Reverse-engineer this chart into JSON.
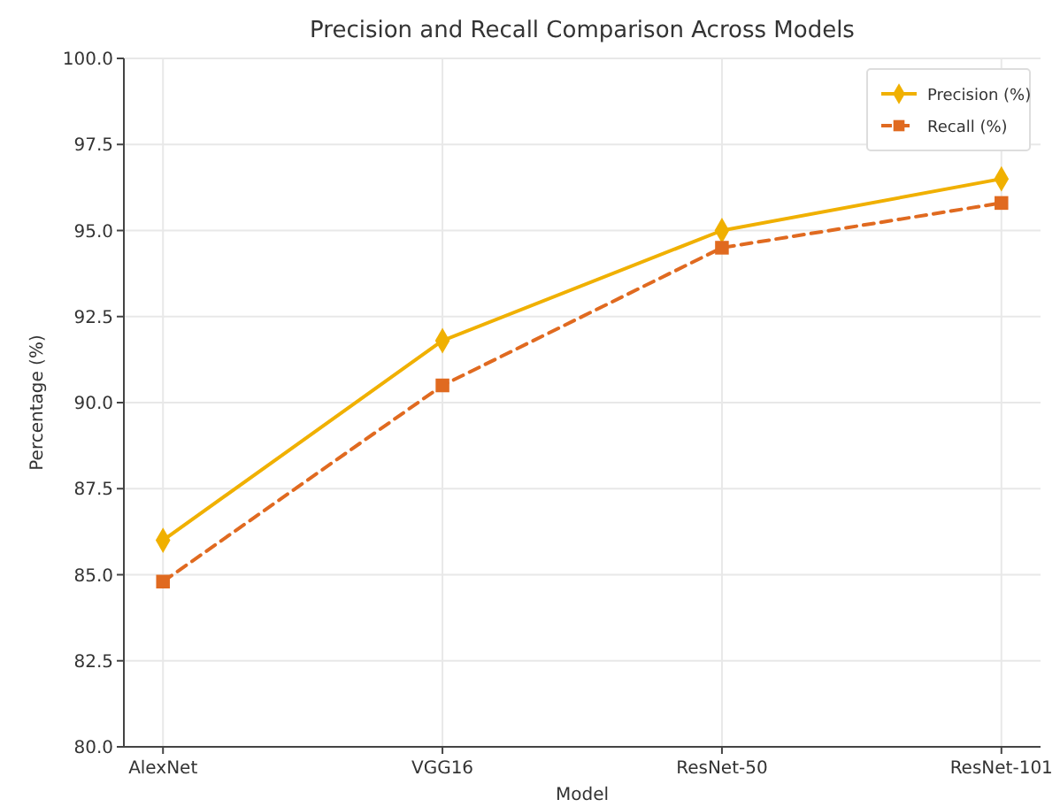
{
  "chart_data": {
    "type": "line",
    "title": "Precision and Recall Comparison Across Models",
    "xlabel": "Model",
    "ylabel": "Percentage (%)",
    "categories": [
      "AlexNet",
      "VGG16",
      "ResNet-50",
      "ResNet-101"
    ],
    "series": [
      {
        "name": "Precision (%)",
        "color": "#f0b000",
        "values": [
          86.0,
          91.8,
          95.0,
          96.5
        ],
        "marker": "diamond",
        "line_style": "solid"
      },
      {
        "name": "Recall (%)",
        "color": "#e06a20",
        "values": [
          84.8,
          90.5,
          94.5,
          95.8
        ],
        "marker": "square",
        "line_style": "dashed"
      }
    ],
    "ylim": [
      80,
      100
    ],
    "yticks": [
      {
        "value": 80,
        "label": "80.0"
      },
      {
        "value": 82.5,
        "label": "82.5"
      },
      {
        "value": 85,
        "label": "85.0"
      },
      {
        "value": 87.5,
        "label": "87.5"
      },
      {
        "value": 90,
        "label": "90.0"
      },
      {
        "value": 92.5,
        "label": "92.5"
      },
      {
        "value": 95,
        "label": "95.0"
      },
      {
        "value": 97.5,
        "label": "97.5"
      },
      {
        "value": 100,
        "label": "100.0"
      }
    ],
    "grid": true,
    "legend": "top right"
  }
}
